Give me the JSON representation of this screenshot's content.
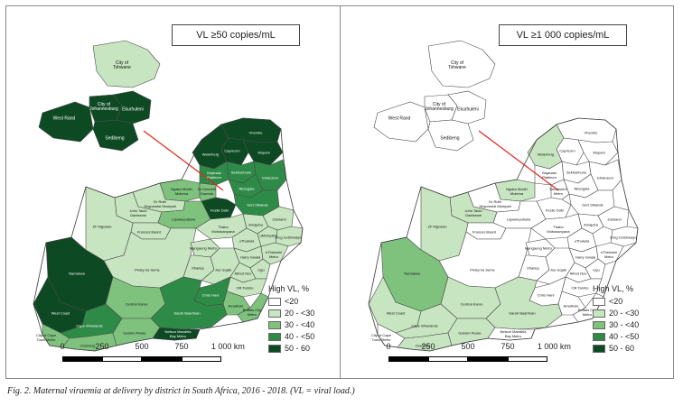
{
  "panels": [
    {
      "title": "VL ≥50 copies/mL",
      "legend_title": "High VL, %",
      "legend": [
        {
          "label": "<20",
          "color": "#ffffff"
        },
        {
          "label": "20 - <30",
          "color": "#c7e5c0"
        },
        {
          "label": "30 - <40",
          "color": "#7fc27e"
        },
        {
          "label": "40 - <50",
          "color": "#2e8b47"
        },
        {
          "label": "50 - 60",
          "color": "#0d4a24"
        }
      ],
      "districts": [
        {
          "name": "City of Tshwane",
          "value_class": "20 - <30"
        },
        {
          "name": "West Rand",
          "value_class": "50 - 60"
        },
        {
          "name": "City of Johannesburg",
          "value_class": "50 - 60"
        },
        {
          "name": "Ekurhuleni",
          "value_class": "50 - 60"
        },
        {
          "name": "Sedibeng",
          "value_class": "50 - 60"
        },
        {
          "name": "Vhembe",
          "value_class": "50 - 60"
        },
        {
          "name": "Capricorn",
          "value_class": "50 - 60"
        },
        {
          "name": "Mopani",
          "value_class": "50 - 60"
        },
        {
          "name": "Waterberg",
          "value_class": "50 - 60"
        },
        {
          "name": "Sekhukhune",
          "value_class": "40 - <50"
        },
        {
          "name": "Ehlanzeni",
          "value_class": "40 - <50"
        },
        {
          "name": "Bojanala Platinum",
          "value_class": "40 - <50"
        },
        {
          "name": "Nkangala",
          "value_class": "40 - <50"
        },
        {
          "name": "Ngaka Modiri Molema",
          "value_class": "30 - <40"
        },
        {
          "name": "Gert Sibande",
          "value_class": "40 - <50"
        },
        {
          "name": "Dr Ruth Segomotsi Mompati",
          "value_class": "20 - <30"
        },
        {
          "name": "Dr Kenneth Kaunda",
          "value_class": "30 - <40"
        },
        {
          "name": "John Taolo Gaetsewe",
          "value_class": "20 - <30"
        },
        {
          "name": "Fezile Dabi",
          "value_class": "50 - 60"
        },
        {
          "name": "Frances Baard",
          "value_class": "20 - <30"
        },
        {
          "name": "Lejweleputswa",
          "value_class": "30 - <40"
        },
        {
          "name": "Thabo Mofutsanyana",
          "value_class": "20 - <30"
        },
        {
          "name": "Amajuba",
          "value_class": "20 - <30"
        },
        {
          "name": "Zululand",
          "value_class": "20 - <30"
        },
        {
          "name": "uThukela",
          "value_class": "20 - <30"
        },
        {
          "name": "King Cetshwayo",
          "value_class": "20 - <30"
        },
        {
          "name": "uMzinyathi",
          "value_class": "20 - <30"
        },
        {
          "name": "ZF Mgcawu",
          "value_class": "20 - <30"
        },
        {
          "name": "Pixley ka Seme",
          "value_class": "20 - <30"
        },
        {
          "name": "Mangaung Metro",
          "value_class": "20 - <30"
        },
        {
          "name": "Xhariep",
          "value_class": "20 - <30"
        },
        {
          "name": "Namakwa",
          "value_class": "50 - 60"
        },
        {
          "name": "Joe Gqabi",
          "value_class": "20 - <30"
        },
        {
          "name": "Harry Gwala",
          "value_class": "20 - <30"
        },
        {
          "name": "eThekwini Metro",
          "value_class": "20 - <30"
        },
        {
          "name": "Alfred Nzo",
          "value_class": "20 - <30"
        },
        {
          "name": "Ugu",
          "value_class": "20 - <30"
        },
        {
          "name": "OR Tambo",
          "value_class": "20 - <30"
        },
        {
          "name": "Chris Hani",
          "value_class": "40 - <50"
        },
        {
          "name": "Amathole",
          "value_class": "30 - <40"
        },
        {
          "name": "Buffalo City Metro",
          "value_class": "30 - <40"
        },
        {
          "name": "Central Karoo",
          "value_class": "30 - <40"
        },
        {
          "name": "Sarah Baartman",
          "value_class": "40 - <50"
        },
        {
          "name": "West Coast",
          "value_class": "50 - 60"
        },
        {
          "name": "Cape Winelands",
          "value_class": "40 - <50"
        },
        {
          "name": "City of Cape Town Metro",
          "value_class": "30 - <40"
        },
        {
          "name": "Overberg",
          "value_class": "30 - <40"
        },
        {
          "name": "Garden Route",
          "value_class": "30 - <40"
        },
        {
          "name": "Nelson Mandela Bay Metro",
          "value_class": "50 - 60"
        }
      ],
      "scale_ticks": [
        "0",
        "250",
        "500",
        "750",
        "1 000 km"
      ]
    },
    {
      "title": "VL ≥1 000 copies/mL",
      "legend_title": "High VL, %",
      "legend": [
        {
          "label": "<20",
          "color": "#ffffff"
        },
        {
          "label": "20 - <30",
          "color": "#c7e5c0"
        },
        {
          "label": "30 - <40",
          "color": "#7fc27e"
        },
        {
          "label": "40 - <50",
          "color": "#2e8b47"
        },
        {
          "label": "50 - 60",
          "color": "#0d4a24"
        }
      ],
      "districts": [
        {
          "name": "City of Tshwane",
          "value_class": "<20"
        },
        {
          "name": "West Rand",
          "value_class": "<20"
        },
        {
          "name": "City of Johannesburg",
          "value_class": "<20"
        },
        {
          "name": "Ekurhuleni",
          "value_class": "<20"
        },
        {
          "name": "Sedibeng",
          "value_class": "<20"
        },
        {
          "name": "Vhembe",
          "value_class": "<20"
        },
        {
          "name": "Capricorn",
          "value_class": "<20"
        },
        {
          "name": "Mopani",
          "value_class": "<20"
        },
        {
          "name": "Waterberg",
          "value_class": "20 - <30"
        },
        {
          "name": "Sekhukhune",
          "value_class": "<20"
        },
        {
          "name": "Ehlanzeni",
          "value_class": "<20"
        },
        {
          "name": "Bojanala Platinum",
          "value_class": "<20"
        },
        {
          "name": "Nkangala",
          "value_class": "<20"
        },
        {
          "name": "Ngaka Modiri Molema",
          "value_class": "20 - <30"
        },
        {
          "name": "Gert Sibande",
          "value_class": "<20"
        },
        {
          "name": "Dr Ruth Segomotsi Mompati",
          "value_class": "<20"
        },
        {
          "name": "Ekurhuleni Metro",
          "value_class": "<20"
        },
        {
          "name": "John Taolo Gaetsewe",
          "value_class": "20 - <30"
        },
        {
          "name": "Fezile Dabi",
          "value_class": "<20"
        },
        {
          "name": "Frances Baard",
          "value_class": "<20"
        },
        {
          "name": "Lejweleputswa",
          "value_class": "<20"
        },
        {
          "name": "Thabo Mofutsanyana",
          "value_class": "<20"
        },
        {
          "name": "Amajuba",
          "value_class": "<20"
        },
        {
          "name": "Zululand",
          "value_class": "<20"
        },
        {
          "name": "uThukela",
          "value_class": "<20"
        },
        {
          "name": "King Cetshwayo",
          "value_class": "<20"
        },
        {
          "name": "ZF Mgcawu",
          "value_class": "20 - <30"
        },
        {
          "name": "Pixley ka Seme",
          "value_class": "<20"
        },
        {
          "name": "Mangaung Metro",
          "value_class": "<20"
        },
        {
          "name": "Xhariep",
          "value_class": "<20"
        },
        {
          "name": "Namakwa",
          "value_class": "30 - <40"
        },
        {
          "name": "Joe Gqabi",
          "value_class": "<20"
        },
        {
          "name": "Harry Gwala",
          "value_class": "<20"
        },
        {
          "name": "eThekwini Metro",
          "value_class": "<20"
        },
        {
          "name": "Alfred Nzo",
          "value_class": "<20"
        },
        {
          "name": "Ugu",
          "value_class": "<20"
        },
        {
          "name": "OR Tambo",
          "value_class": "<20"
        },
        {
          "name": "Chris Hani",
          "value_class": "<20"
        },
        {
          "name": "Amathole",
          "value_class": "<20"
        },
        {
          "name": "Buffalo City Metro",
          "value_class": "<20"
        },
        {
          "name": "Central Karoo",
          "value_class": "20 - <30"
        },
        {
          "name": "Sarah Baartman",
          "value_class": "20 - <30"
        },
        {
          "name": "West Coast",
          "value_class": "20 - <30"
        },
        {
          "name": "Cape Winelands",
          "value_class": "20 - <30"
        },
        {
          "name": "City of Cape Town Metro",
          "value_class": "<20"
        },
        {
          "name": "Overberg",
          "value_class": "20 - <30"
        },
        {
          "name": "Garden Route",
          "value_class": "20 - <30"
        },
        {
          "name": "Nelson Mandela Bay Metro",
          "value_class": "<20"
        }
      ],
      "scale_ticks": [
        "0",
        "250",
        "500",
        "750",
        "1 000 km"
      ]
    }
  ],
  "caption": "Fig. 2. Maternal viraemia at delivery by district in South Africa, 2016 - 2018. (VL = viral load.)",
  "colors": {
    "border": "#4a4a4a",
    "pointer_line": "#e0281e"
  }
}
